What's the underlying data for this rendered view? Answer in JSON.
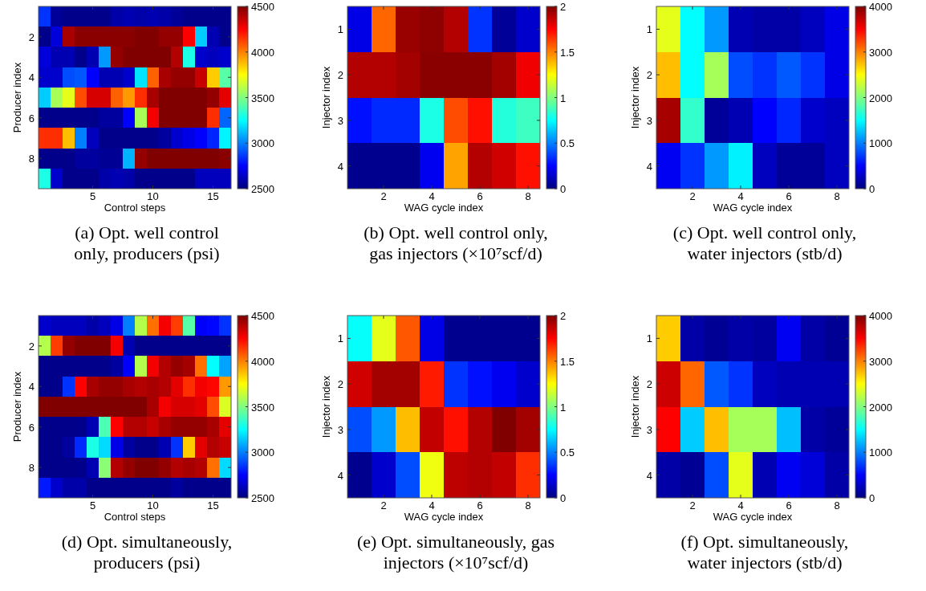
{
  "chart_data": [
    {
      "type": "heatmap",
      "xlabel": "Control steps",
      "ylabel": "Producer index",
      "annotations": [
        "(a) Opt. well control only, producers (psi)"
      ],
      "xlim": [
        0.5,
        16.5
      ],
      "xticks": [
        5,
        10,
        15
      ],
      "ylim": [
        9.5,
        0.5
      ],
      "yticks": [
        2,
        4,
        6,
        8
      ],
      "clim": [
        2500,
        4500
      ],
      "cticks": [
        2500,
        3000,
        3500,
        4000,
        4500
      ],
      "cells": [
        [
          2850,
          2550,
          2520,
          2520,
          2520,
          2520,
          2580,
          2600,
          2580,
          2600,
          2580,
          2550,
          2520,
          2520,
          2520,
          2520
        ],
        [
          2520,
          2680,
          4420,
          4480,
          4480,
          4480,
          4480,
          4480,
          4500,
          4500,
          4460,
          4460,
          4250,
          3150,
          2600,
          2520
        ],
        [
          2680,
          2600,
          2600,
          2520,
          2600,
          3050,
          4460,
          4500,
          4500,
          4500,
          4500,
          4400,
          3300,
          2650,
          2620,
          2650
        ],
        [
          2650,
          2650,
          2900,
          2920,
          2750,
          2600,
          2600,
          2650,
          3200,
          4060,
          4420,
          4460,
          4460,
          4360,
          3850,
          3420
        ],
        [
          3150,
          3580,
          3700,
          4100,
          4330,
          4330,
          4060,
          3950,
          4160,
          4420,
          4500,
          4500,
          4500,
          4500,
          4460,
          4300
        ],
        [
          2520,
          2520,
          2520,
          2520,
          2520,
          2560,
          2560,
          2750,
          3580,
          4270,
          4500,
          4500,
          4500,
          4500,
          4160,
          2950
        ],
        [
          4160,
          4160,
          3880,
          3000,
          2620,
          2520,
          2520,
          2520,
          2520,
          2520,
          2560,
          2650,
          2700,
          2750,
          2820,
          3230
        ],
        [
          2520,
          2520,
          2520,
          2560,
          2560,
          2540,
          2540,
          3100,
          4460,
          4500,
          4500,
          4500,
          4500,
          4500,
          4500,
          4480
        ],
        [
          3300,
          2650,
          2520,
          2520,
          2520,
          2580,
          2600,
          2580,
          2520,
          2520,
          2520,
          2520,
          2520,
          2620,
          2620,
          2620
        ]
      ]
    },
    {
      "type": "heatmap",
      "xlabel": "WAG cycle index",
      "ylabel": "Injector index",
      "annotations": [
        "(b) Opt. well control only, gas injectors (×10⁷scf/d)"
      ],
      "xlim": [
        0.5,
        8.5
      ],
      "xticks": [
        2,
        4,
        6,
        8
      ],
      "ylim": [
        4.5,
        0.5
      ],
      "yticks": [
        1,
        2,
        3,
        4
      ],
      "clim": [
        0,
        2
      ],
      "cticks": [
        0,
        0.5,
        1,
        1.5,
        2
      ],
      "cells": [
        [
          0.2,
          1.55,
          1.95,
          1.97,
          1.9,
          0.35,
          0.05,
          0.15
        ],
        [
          1.9,
          1.9,
          1.93,
          1.98,
          1.98,
          1.98,
          1.93,
          1.78
        ],
        [
          0.28,
          0.33,
          0.33,
          0.8,
          1.6,
          1.72,
          0.82,
          0.87
        ],
        [
          0.03,
          0.03,
          0.03,
          0.22,
          1.43,
          1.9,
          1.84,
          1.72
        ]
      ]
    },
    {
      "type": "heatmap",
      "xlabel": "WAG cycle index",
      "ylabel": "Injector index",
      "annotations": [
        "(c) Opt. well control only, water injectors (stb/d)"
      ],
      "xlim": [
        0.5,
        8.5
      ],
      "xticks": [
        2,
        4,
        6,
        8
      ],
      "ylim": [
        4.5,
        0.5
      ],
      "yticks": [
        1,
        2,
        3,
        4
      ],
      "clim": [
        0,
        4000
      ],
      "cticks": [
        0,
        1000,
        2000,
        3000,
        4000
      ],
      "cells": [
        [
          2400,
          1500,
          1100,
          200,
          150,
          150,
          250,
          400
        ],
        [
          2750,
          1500,
          2150,
          800,
          700,
          850,
          700,
          400
        ],
        [
          3850,
          1700,
          100,
          200,
          500,
          650,
          300,
          250
        ],
        [
          450,
          700,
          1100,
          1450,
          250,
          100,
          100,
          250
        ]
      ]
    },
    {
      "type": "heatmap",
      "xlabel": "Control steps",
      "ylabel": "Producer index",
      "annotations": [
        "(d) Opt. simultaneously, producers (psi)"
      ],
      "xlim": [
        0.5,
        16.5
      ],
      "xticks": [
        5,
        10,
        15
      ],
      "ylim": [
        9.5,
        0.5
      ],
      "yticks": [
        2,
        4,
        6,
        8
      ],
      "clim": [
        2500,
        4500
      ],
      "cticks": [
        2500,
        3000,
        3500,
        4000,
        4500
      ],
      "cells": [
        [
          2650,
          2620,
          2620,
          2620,
          2580,
          2620,
          2700,
          3000,
          3600,
          4030,
          4270,
          4130,
          3420,
          2740,
          2760,
          2850
        ],
        [
          3600,
          4130,
          4460,
          4500,
          4500,
          4500,
          4270,
          2600,
          2520,
          2520,
          2520,
          2520,
          2520,
          2520,
          2520,
          2520
        ],
        [
          2520,
          2520,
          2520,
          2520,
          2520,
          2520,
          2560,
          2750,
          3600,
          4270,
          4400,
          4460,
          4430,
          4030,
          3250,
          3070
        ],
        [
          2520,
          2520,
          2850,
          4250,
          4420,
          4460,
          4460,
          4420,
          4400,
          4420,
          4400,
          4300,
          4160,
          4270,
          4240,
          3950
        ],
        [
          4500,
          4500,
          4500,
          4500,
          4500,
          4500,
          4500,
          4500,
          4500,
          4420,
          4270,
          4330,
          4330,
          4300,
          4100,
          3680
        ],
        [
          2520,
          2520,
          2520,
          2520,
          2600,
          3400,
          4250,
          4400,
          4400,
          4360,
          4420,
          4460,
          4460,
          4460,
          4420,
          4300
        ],
        [
          2520,
          2520,
          2560,
          2830,
          3300,
          3180,
          2700,
          2560,
          2520,
          2520,
          2600,
          2850,
          3850,
          4300,
          4400,
          4360
        ],
        [
          2520,
          2520,
          2520,
          2520,
          2600,
          3520,
          4400,
          4460,
          4500,
          4500,
          4460,
          4400,
          4420,
          4400,
          4030,
          3180
        ],
        [
          2800,
          2650,
          2580,
          2580,
          2520,
          2520,
          2520,
          2520,
          2520,
          2520,
          2520,
          2560,
          2520,
          2520,
          2520,
          2520
        ]
      ]
    },
    {
      "type": "heatmap",
      "xlabel": "WAG cycle index",
      "ylabel": "Injector index",
      "annotations": [
        "(e) Opt. simultaneously, gas injectors (×10⁷scf/d)"
      ],
      "xlim": [
        0.5,
        8.5
      ],
      "xticks": [
        2,
        4,
        6,
        8
      ],
      "ylim": [
        4.5,
        0.5
      ],
      "yticks": [
        1,
        2,
        3,
        4
      ],
      "clim": [
        0,
        2
      ],
      "cticks": [
        0,
        0.5,
        1,
        1.5,
        2
      ],
      "cells": [
        [
          0.76,
          1.2,
          1.58,
          0.2,
          0.03,
          0.03,
          0.03,
          0.03
        ],
        [
          1.84,
          1.93,
          1.93,
          1.7,
          0.35,
          0.28,
          0.22,
          0.15
        ],
        [
          0.4,
          0.55,
          1.38,
          1.87,
          1.72,
          1.9,
          2,
          1.93
        ],
        [
          0.03,
          0.15,
          0.4,
          1.22,
          1.88,
          1.9,
          1.87,
          1.66
        ]
      ]
    },
    {
      "type": "heatmap",
      "xlabel": "WAG cycle index",
      "ylabel": "Injector index",
      "annotations": [
        "(f) Opt. simultaneously, water injectors (stb/d)"
      ],
      "xlim": [
        0.5,
        8.5
      ],
      "xticks": [
        2,
        4,
        6,
        8
      ],
      "ylim": [
        4.5,
        0.5
      ],
      "yticks": [
        1,
        2,
        3,
        4
      ],
      "clim": [
        0,
        4000
      ],
      "cticks": [
        0,
        1000,
        2000,
        3000,
        4000
      ],
      "cells": [
        [
          2700,
          150,
          80,
          150,
          120,
          450,
          150,
          80
        ],
        [
          3700,
          3100,
          850,
          700,
          250,
          200,
          200,
          200
        ],
        [
          3500,
          1300,
          2750,
          2150,
          2150,
          1250,
          150,
          100
        ],
        [
          150,
          80,
          800,
          2400,
          200,
          450,
          350,
          150
        ]
      ]
    }
  ]
}
